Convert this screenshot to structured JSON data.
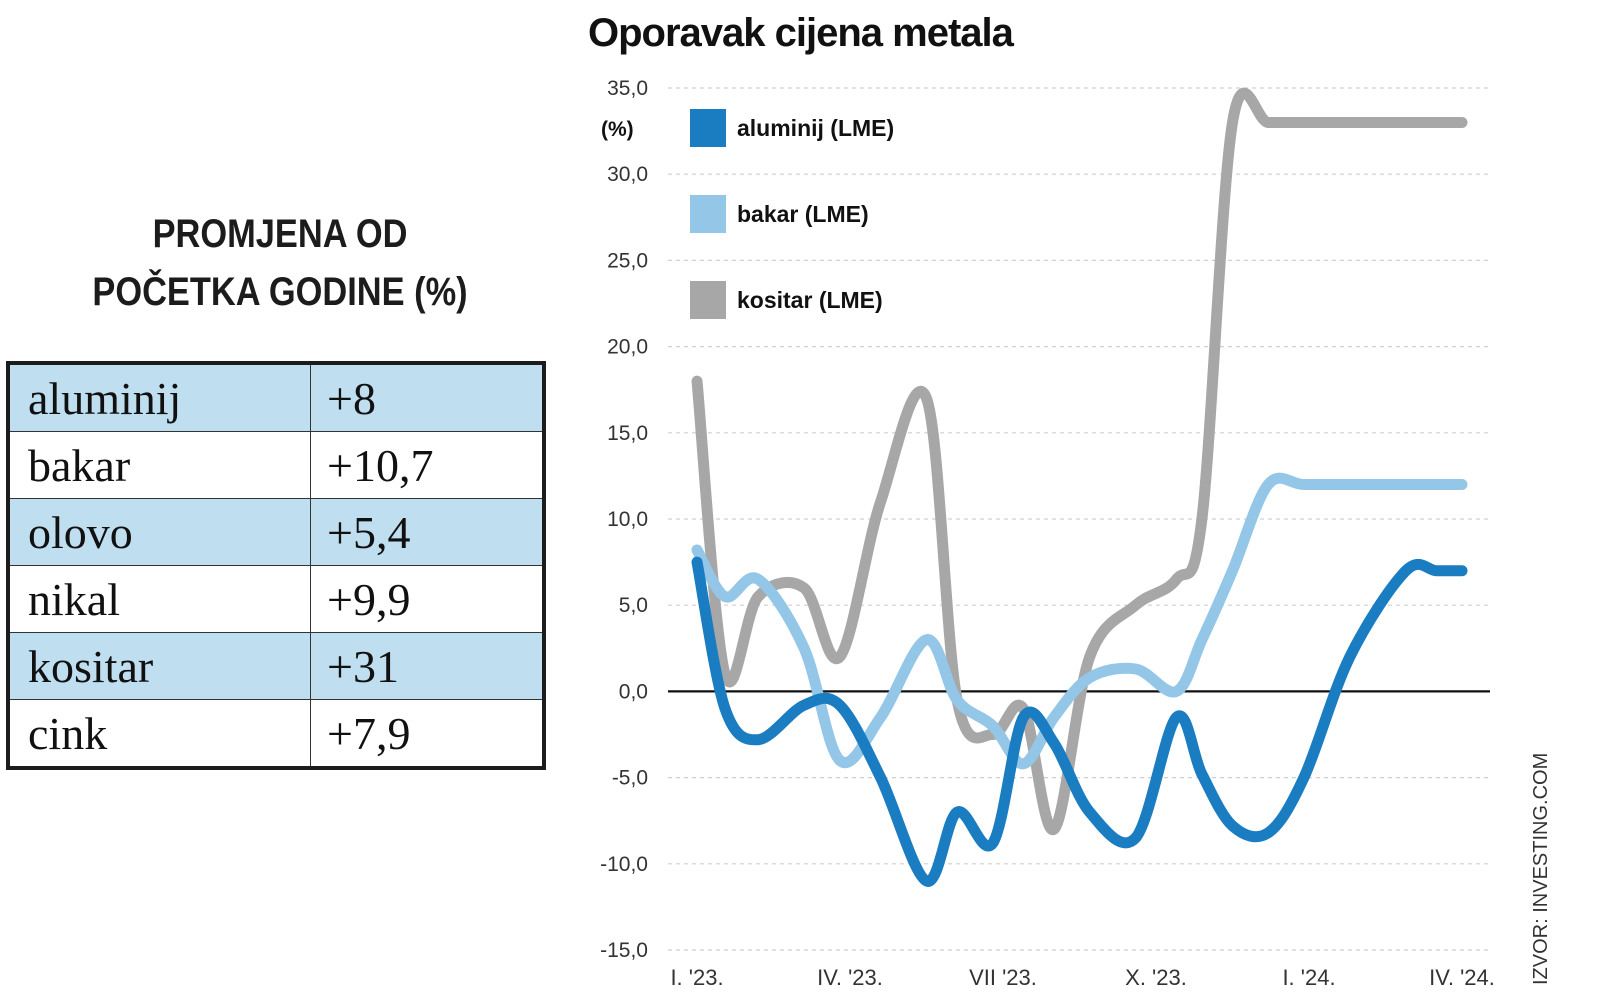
{
  "table": {
    "title_line1": "PROMJENA OD",
    "title_line2": "POČETKA GODINE (%)",
    "rows": [
      {
        "metal": "aluminij",
        "value": "+8"
      },
      {
        "metal": "bakar",
        "value": "+10,7"
      },
      {
        "metal": "olovo",
        "value": "+5,4"
      },
      {
        "metal": "nikal",
        "value": "+9,9"
      },
      {
        "metal": "kositar",
        "value": "+31"
      },
      {
        "metal": "cink",
        "value": "+7,9"
      }
    ]
  },
  "chart_data": {
    "type": "line",
    "title": "Oporavak cijena metala",
    "ylabel": "(%)",
    "ylim": [
      -15,
      35
    ],
    "yticks": [
      "35,0",
      "30,0",
      "25,0",
      "20,0",
      "15,0",
      "10,0",
      "5,0",
      "0,0",
      "-5,0",
      "-10,0",
      "-15,0"
    ],
    "ytick_values": [
      35,
      30,
      25,
      20,
      15,
      10,
      5,
      0,
      -5,
      -10,
      -15
    ],
    "xticks": [
      "I. '23.",
      "IV. '23.",
      "VII '23.",
      "X. '23.",
      "I. '24.",
      "IV. '24."
    ],
    "xtick_positions": [
      0,
      3,
      6,
      9,
      12,
      15
    ],
    "xlim": [
      0,
      15
    ],
    "grid": true,
    "legend_position": "top-left",
    "series": [
      {
        "name": "aluminij (LME)",
        "color": "#1a7cc1",
        "x": [
          0,
          0.55,
          1.2,
          2.1,
          2.8,
          3.6,
          4.5,
          5.1,
          5.8,
          6.4,
          7.0,
          7.7,
          8.6,
          9.4,
          9.9,
          10.5,
          11.2,
          11.9,
          12.8,
          13.9,
          14.5,
          15.0
        ],
        "y": [
          7.5,
          -1.0,
          -2.8,
          -0.8,
          -0.8,
          -5.0,
          -11.0,
          -7.0,
          -8.8,
          -1.5,
          -3.0,
          -7.0,
          -8.5,
          -1.5,
          -4.8,
          -7.8,
          -8.2,
          -5.0,
          2.0,
          7.0,
          7.0,
          7.0
        ]
      },
      {
        "name": "bakar (LME)",
        "color": "#93c6e7",
        "x": [
          0,
          0.55,
          1.2,
          2.1,
          2.8,
          3.6,
          4.5,
          5.1,
          5.8,
          6.4,
          7.0,
          7.7,
          8.6,
          9.4,
          9.9,
          10.5,
          11.2,
          11.9,
          12.8,
          13.5,
          14.2,
          15.0
        ],
        "y": [
          8.2,
          5.5,
          6.5,
          2.5,
          -4.0,
          -1.5,
          3.0,
          -0.5,
          -2.0,
          -4.2,
          -1.5,
          0.8,
          1.3,
          0.0,
          3.0,
          7.0,
          12.0,
          12.0,
          12.0,
          12.0,
          12.0,
          12.0
        ]
      },
      {
        "name": "kositar (LME)",
        "color": "#a7a7a7",
        "x": [
          0,
          0.55,
          1.2,
          2.1,
          2.8,
          3.6,
          4.5,
          5.1,
          5.8,
          6.4,
          7.0,
          7.7,
          8.6,
          9.4,
          9.9,
          10.5,
          11.2,
          11.9,
          12.8,
          13.5,
          14.2,
          15.0
        ],
        "y": [
          18.0,
          1.0,
          5.5,
          6.0,
          2.0,
          11.0,
          17.0,
          -0.5,
          -2.5,
          -1.0,
          -8.0,
          2.0,
          5.0,
          6.5,
          10.0,
          33.0,
          33.0,
          33.0,
          33.0,
          33.0,
          33.0,
          33.0
        ]
      }
    ],
    "source_note": "IZVOR: INVESTING.COM"
  }
}
